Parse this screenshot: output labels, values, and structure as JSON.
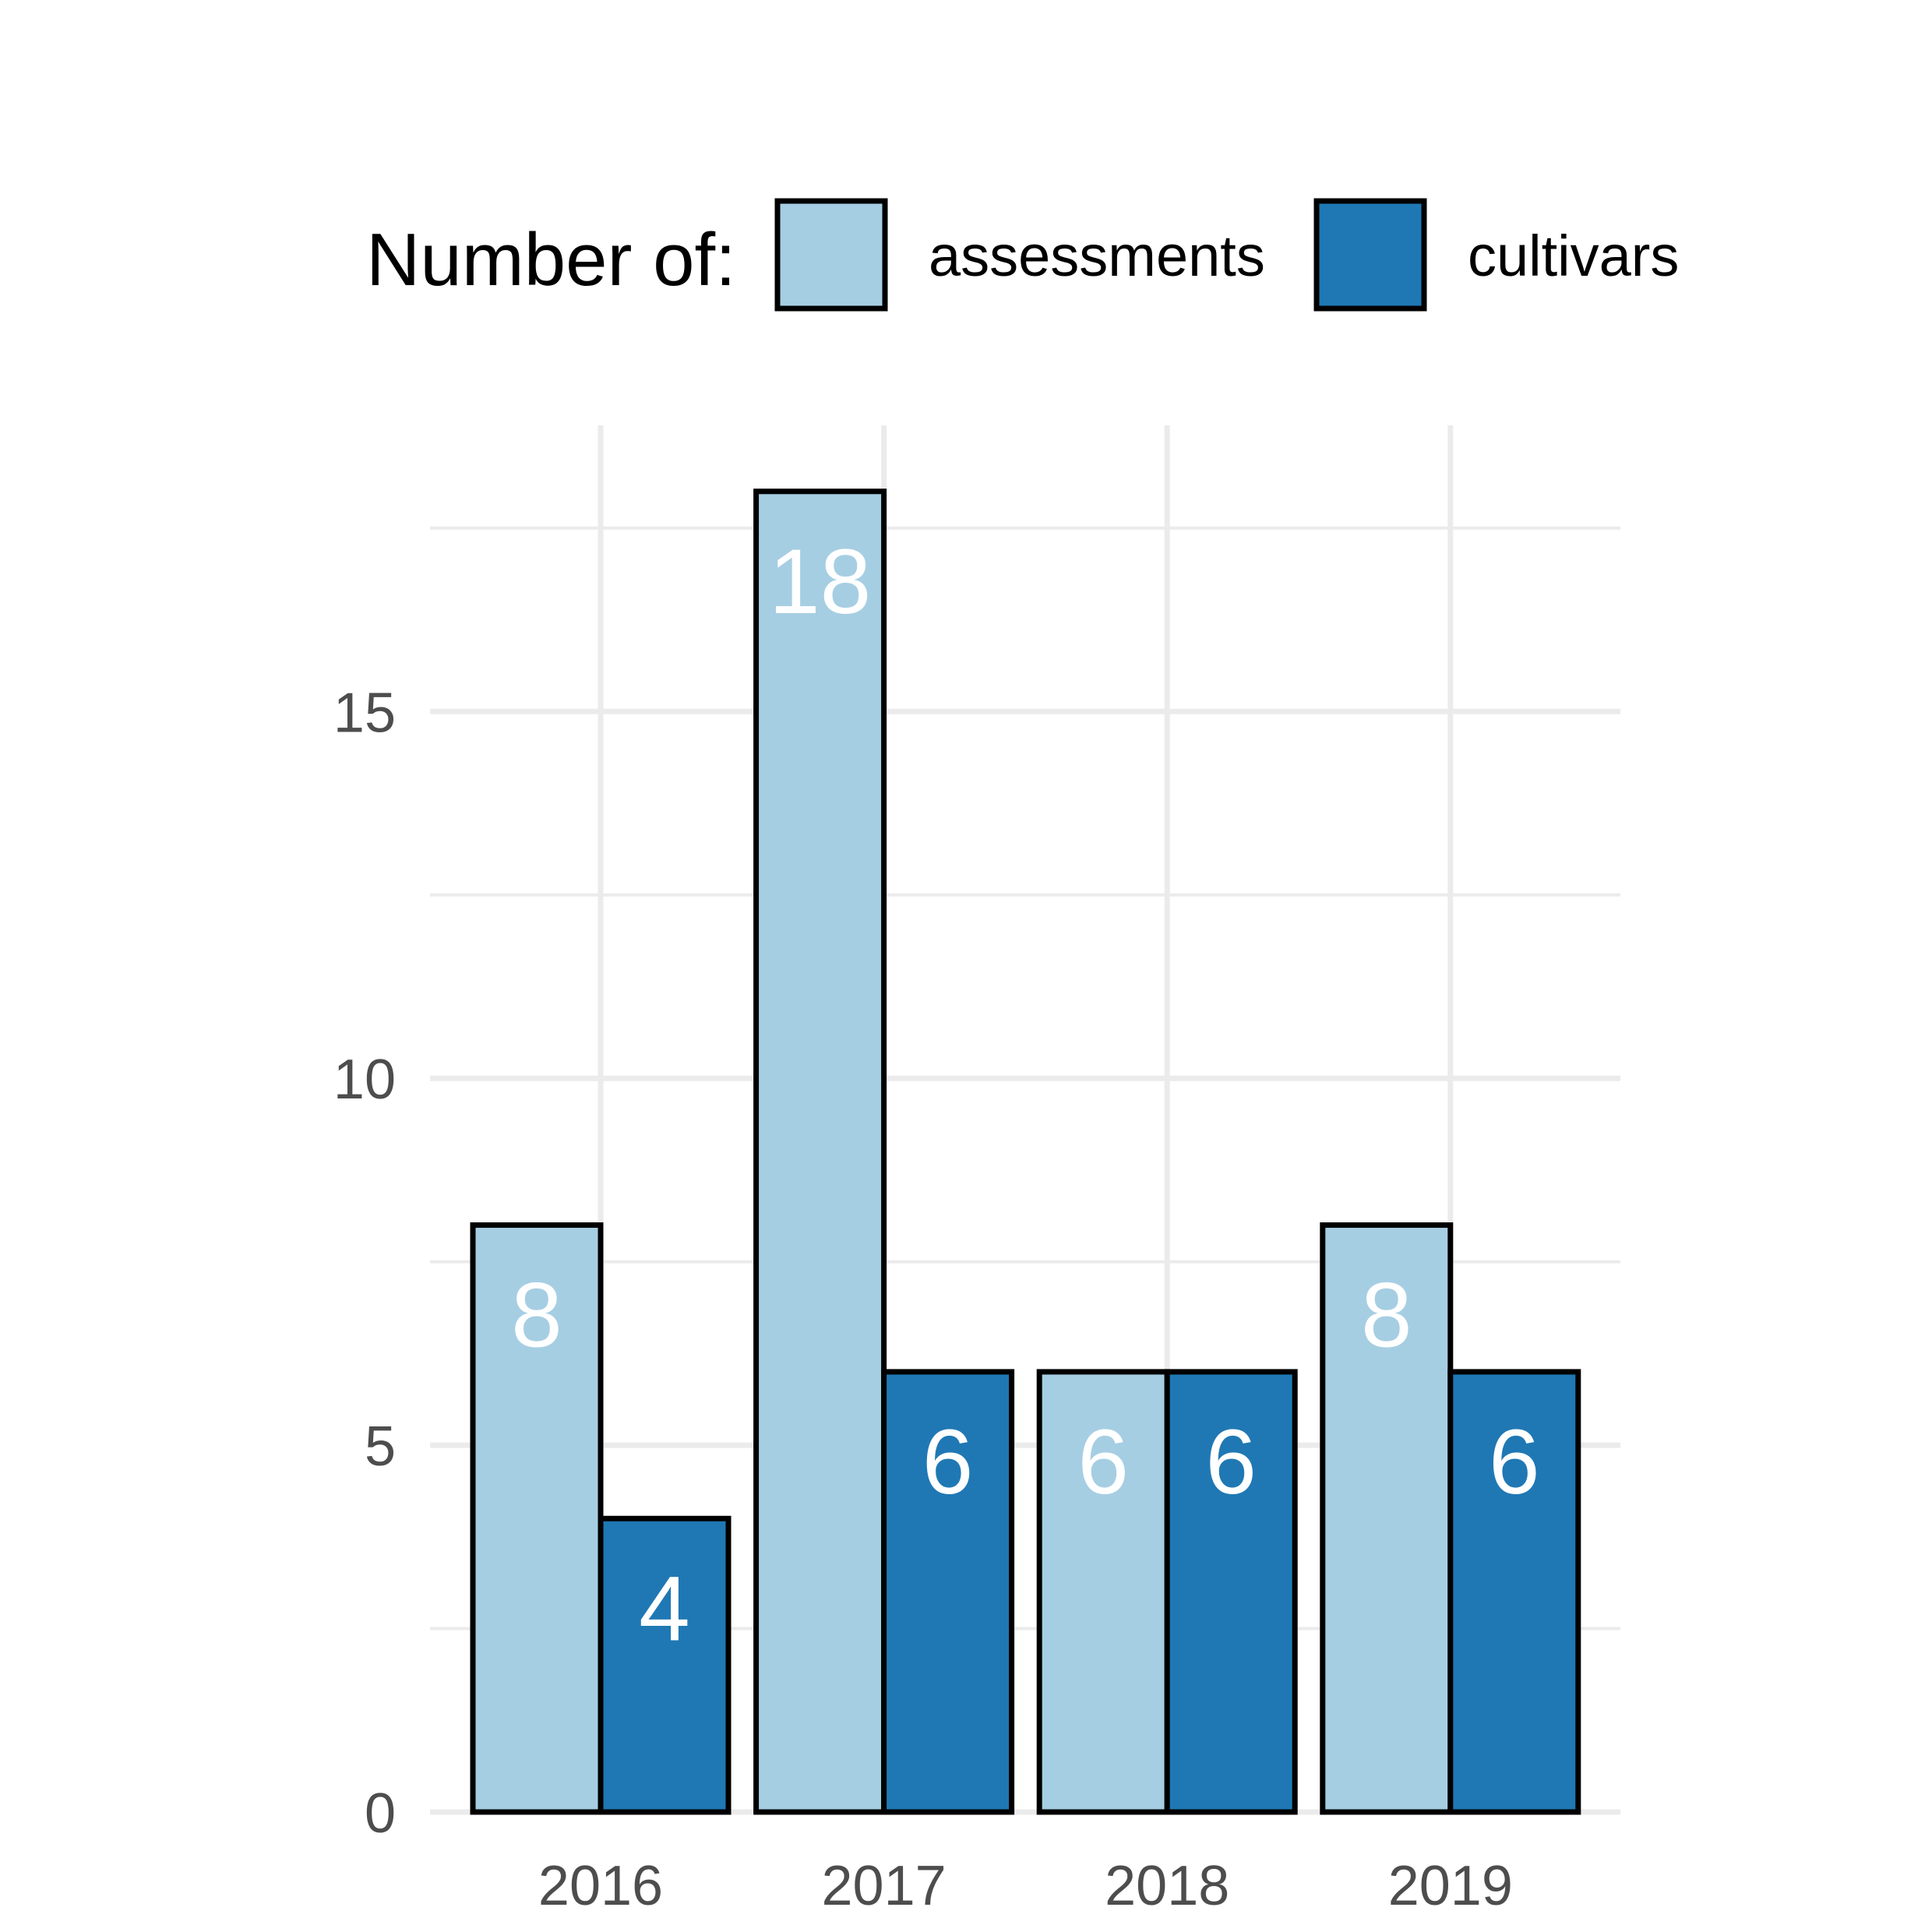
{
  "chart_data": {
    "type": "bar",
    "categories": [
      "2016",
      "2017",
      "2018",
      "2019"
    ],
    "series": [
      {
        "name": "assessments",
        "color": "#a6cee3",
        "values": [
          8,
          18,
          6,
          8
        ]
      },
      {
        "name": "cultivars",
        "color": "#1f78b4",
        "values": [
          4,
          6,
          6,
          6
        ]
      }
    ],
    "legend": {
      "title": "Number of:",
      "position": "top"
    },
    "title": "",
    "xlabel": "",
    "ylabel": "",
    "ylim": [
      0,
      18.9
    ],
    "yticks": [
      0,
      5,
      10,
      15
    ],
    "grid": true,
    "data_labels": true
  }
}
